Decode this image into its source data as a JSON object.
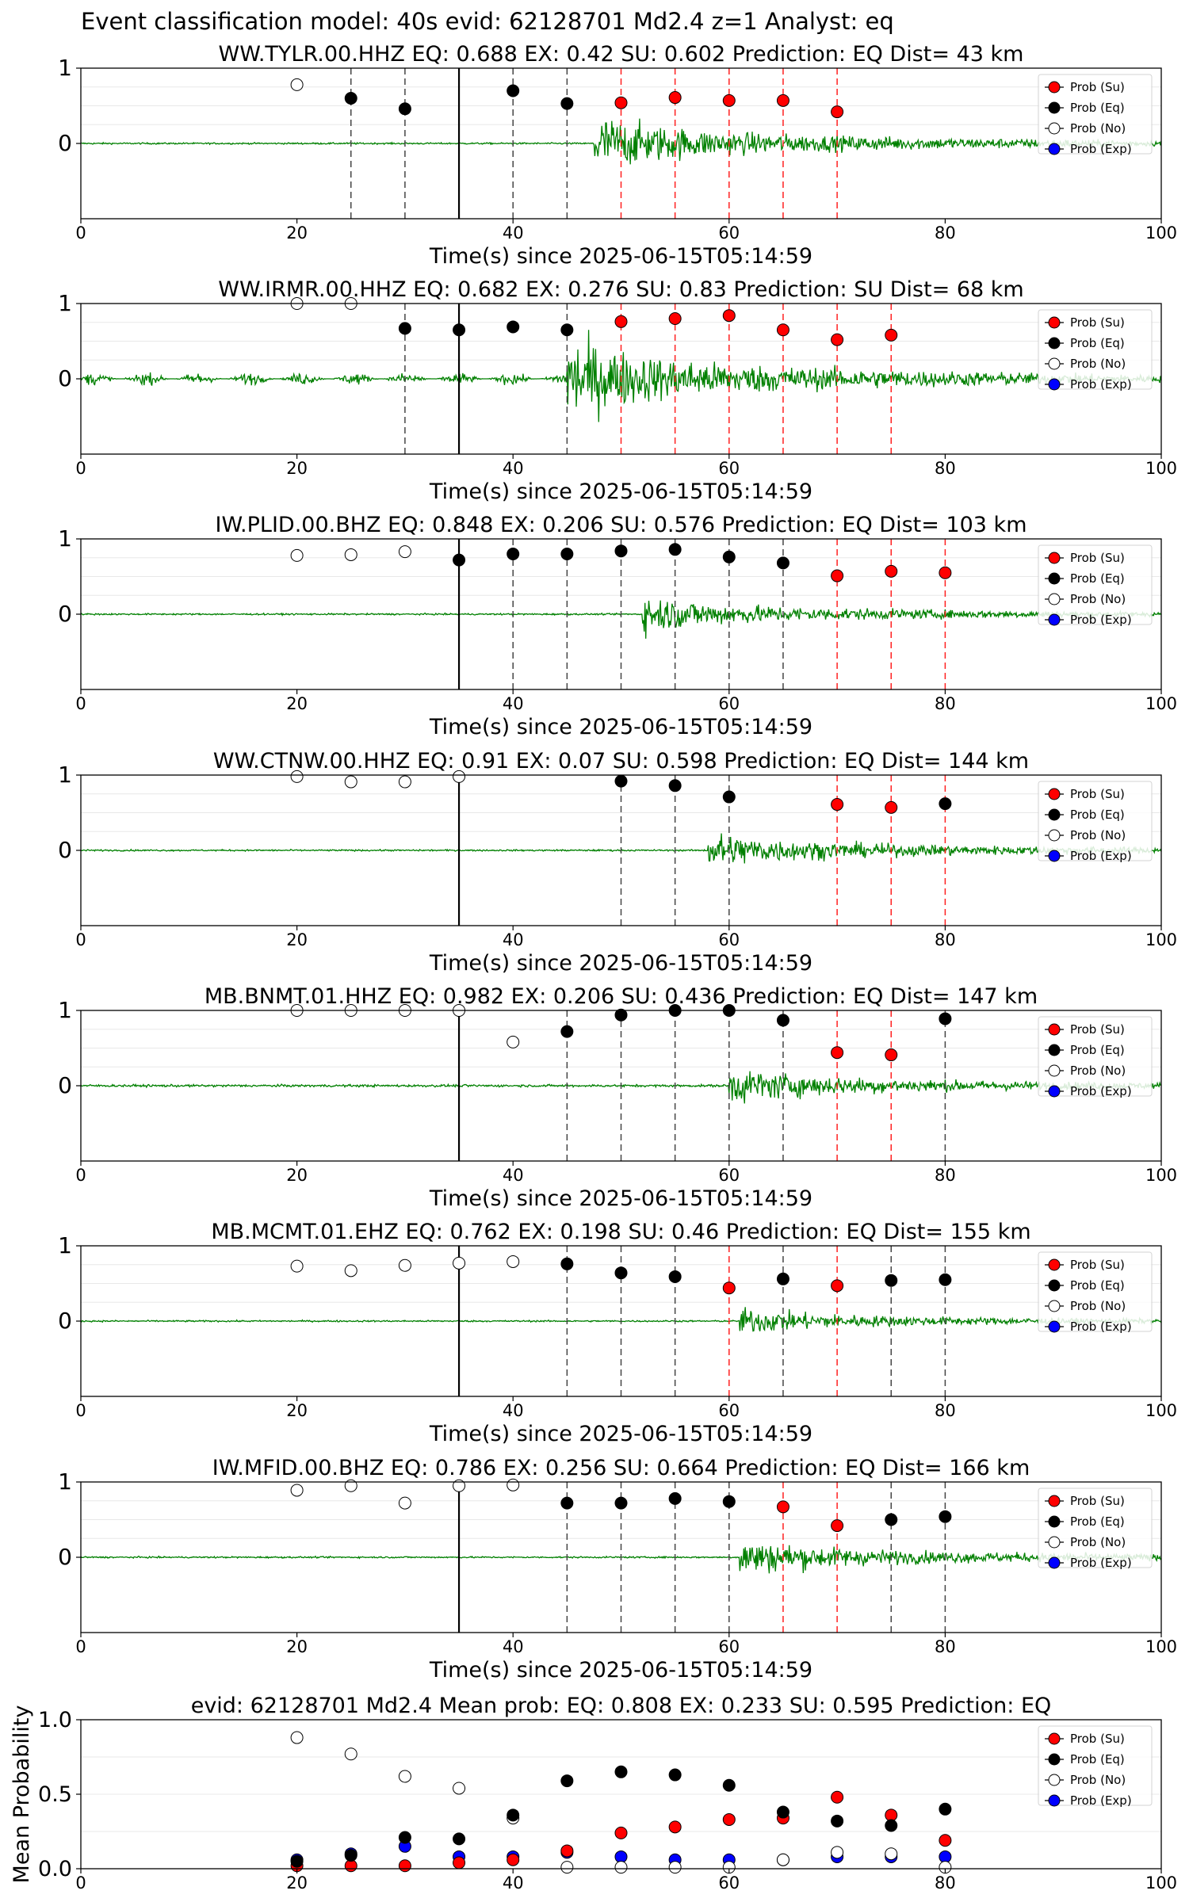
{
  "page_title": "Event classification model: 40s evid: 62128701 Md2.4 z=1 Analyst: eq",
  "legend_labels": [
    "Prob (Su)",
    "Prob (Eq)",
    "Prob (No)",
    "Prob (Exp)"
  ],
  "colors": {
    "su": "#ff0000",
    "eq": "#000000",
    "no": "#ffffff",
    "exp": "#0000ff",
    "waveform": "#008000"
  },
  "chart_data": [
    {
      "type": "scatter",
      "title": "WW.TYLR.00.HHZ   EQ: 0.688  EX: 0.42  SU: 0.602   Prediction: EQ    Dist= 43 km",
      "xlabel": "Time(s) since 2025-06-15T05:14:59",
      "ylabel": "",
      "xlim": [
        0,
        100
      ],
      "ylim": [
        -1,
        1
      ],
      "xticks": [
        0,
        20,
        40,
        60,
        80,
        100
      ],
      "yticks": [
        0,
        1
      ],
      "onset": 47.5,
      "noise_amp": 0.01,
      "signal_amp": 0.38,
      "black_line": 35,
      "gray_lines": [
        25,
        30,
        40,
        45
      ],
      "red_lines": [
        50,
        55,
        60,
        65,
        70
      ],
      "series": [
        {
          "name": "Prob (No)",
          "x": [
            20
          ],
          "y": [
            0.78
          ]
        },
        {
          "name": "Prob (Eq)",
          "x": [
            25,
            30,
            40,
            45
          ],
          "y": [
            0.6,
            0.46,
            0.7,
            0.53
          ]
        },
        {
          "name": "Prob (Su)",
          "x": [
            50,
            55,
            60,
            65,
            70
          ],
          "y": [
            0.54,
            0.61,
            0.57,
            0.57,
            0.42
          ]
        }
      ]
    },
    {
      "type": "scatter",
      "title": "WW.IRMR.00.HHZ   EQ: 0.682  EX: 0.276  SU: 0.83   Prediction: SU    Dist= 68 km",
      "xlabel": "Time(s) since 2025-06-15T05:14:59",
      "ylabel": "",
      "xlim": [
        0,
        100
      ],
      "ylim": [
        -1,
        1
      ],
      "xticks": [
        0,
        20,
        40,
        60,
        80,
        100
      ],
      "yticks": [
        0,
        1
      ],
      "onset": 45,
      "noise_amp": 0.05,
      "signal_amp": 0.55,
      "black_line": 35,
      "gray_lines": [
        30,
        45
      ],
      "red_lines": [
        50,
        55,
        60,
        65,
        70,
        75
      ],
      "series": [
        {
          "name": "Prob (No)",
          "x": [
            20,
            25
          ],
          "y": [
            1.0,
            1.0
          ]
        },
        {
          "name": "Prob (Eq)",
          "x": [
            30,
            35,
            40,
            45
          ],
          "y": [
            0.67,
            0.65,
            0.69,
            0.65
          ]
        },
        {
          "name": "Prob (Su)",
          "x": [
            50,
            55,
            60,
            65,
            70,
            75
          ],
          "y": [
            0.76,
            0.8,
            0.84,
            0.65,
            0.52,
            0.58
          ]
        }
      ]
    },
    {
      "type": "scatter",
      "title": "IW.PLID.00.BHZ   EQ: 0.848  EX: 0.206  SU: 0.576   Prediction: EQ    Dist= 103 km",
      "xlabel": "Time(s) since 2025-06-15T05:14:59",
      "ylabel": "",
      "xlim": [
        0,
        100
      ],
      "ylim": [
        -1,
        1
      ],
      "xticks": [
        0,
        20,
        40,
        60,
        80,
        100
      ],
      "yticks": [
        0,
        1
      ],
      "onset": 52,
      "noise_amp": 0.01,
      "signal_amp": 0.25,
      "black_line": 35,
      "gray_lines": [
        40,
        45,
        50,
        55,
        60,
        65
      ],
      "red_lines": [
        70,
        75,
        80
      ],
      "series": [
        {
          "name": "Prob (No)",
          "x": [
            20,
            25,
            30
          ],
          "y": [
            0.78,
            0.79,
            0.83
          ]
        },
        {
          "name": "Prob (Eq)",
          "x": [
            35,
            40,
            45,
            50,
            55,
            60,
            65
          ],
          "y": [
            0.72,
            0.8,
            0.8,
            0.84,
            0.86,
            0.76,
            0.68
          ]
        },
        {
          "name": "Prob (Su)",
          "x": [
            70,
            75,
            80
          ],
          "y": [
            0.51,
            0.57,
            0.55
          ]
        }
      ]
    },
    {
      "type": "scatter",
      "title": "WW.CTNW.00.HHZ   EQ: 0.91  EX: 0.07  SU: 0.598   Prediction: EQ    Dist= 144 km",
      "xlabel": "Time(s) since 2025-06-15T05:14:59",
      "ylabel": "",
      "xlim": [
        0,
        100
      ],
      "ylim": [
        -1,
        1
      ],
      "xticks": [
        0,
        20,
        40,
        60,
        80,
        100
      ],
      "yticks": [
        0,
        1
      ],
      "onset": 58,
      "noise_amp": 0.01,
      "signal_amp": 0.25,
      "black_line": 35,
      "gray_lines": [
        50,
        55,
        60
      ],
      "red_lines": [
        70,
        75,
        80
      ],
      "series": [
        {
          "name": "Prob (No)",
          "x": [
            20,
            25,
            30,
            35
          ],
          "y": [
            0.98,
            0.91,
            0.91,
            0.98
          ]
        },
        {
          "name": "Prob (Eq)",
          "x": [
            50,
            55,
            60,
            80
          ],
          "y": [
            0.92,
            0.86,
            0.71,
            0.62
          ]
        },
        {
          "name": "Prob (Su)",
          "x": [
            70,
            75
          ],
          "y": [
            0.61,
            0.57
          ]
        }
      ]
    },
    {
      "type": "scatter",
      "title": "MB.BNMT.01.HHZ   EQ: 0.982  EX: 0.206  SU: 0.436   Prediction: EQ    Dist= 147 km",
      "xlabel": "Time(s) since 2025-06-15T05:14:59",
      "ylabel": "",
      "xlim": [
        0,
        100
      ],
      "ylim": [
        -1,
        1
      ],
      "xticks": [
        0,
        20,
        40,
        60,
        80,
        100
      ],
      "yticks": [
        0,
        1
      ],
      "onset": 60,
      "noise_amp": 0.015,
      "signal_amp": 0.25,
      "black_line": 35,
      "gray_lines": [
        45,
        50,
        55,
        60,
        65,
        80
      ],
      "red_lines": [
        70,
        75
      ],
      "series": [
        {
          "name": "Prob (No)",
          "x": [
            20,
            25,
            30,
            35,
            40
          ],
          "y": [
            1.0,
            1.0,
            1.0,
            1.0,
            0.58
          ]
        },
        {
          "name": "Prob (Eq)",
          "x": [
            45,
            50,
            55,
            60,
            65,
            80
          ],
          "y": [
            0.72,
            0.94,
            1.0,
            1.0,
            0.87,
            0.89
          ]
        },
        {
          "name": "Prob (Su)",
          "x": [
            70,
            75
          ],
          "y": [
            0.44,
            0.41
          ]
        }
      ]
    },
    {
      "type": "scatter",
      "title": "MB.MCMT.01.EHZ   EQ: 0.762  EX: 0.198  SU: 0.46   Prediction: EQ    Dist= 155 km",
      "xlabel": "Time(s) since 2025-06-15T05:14:59",
      "ylabel": "",
      "xlim": [
        0,
        100
      ],
      "ylim": [
        -1,
        1
      ],
      "xticks": [
        0,
        20,
        40,
        60,
        80,
        100
      ],
      "yticks": [
        0,
        1
      ],
      "onset": 61,
      "noise_amp": 0.01,
      "signal_amp": 0.18,
      "black_line": 35,
      "gray_lines": [
        45,
        50,
        55,
        65,
        75,
        80
      ],
      "red_lines": [
        60,
        70
      ],
      "series": [
        {
          "name": "Prob (No)",
          "x": [
            20,
            25,
            30,
            35,
            40
          ],
          "y": [
            0.73,
            0.67,
            0.74,
            0.77,
            0.79
          ]
        },
        {
          "name": "Prob (Eq)",
          "x": [
            45,
            50,
            55,
            65,
            75,
            80
          ],
          "y": [
            0.76,
            0.64,
            0.59,
            0.56,
            0.54,
            0.55
          ]
        },
        {
          "name": "Prob (Su)",
          "x": [
            60,
            70
          ],
          "y": [
            0.44,
            0.47
          ]
        }
      ]
    },
    {
      "type": "scatter",
      "title": "IW.MFID.00.BHZ   EQ: 0.786  EX: 0.256  SU: 0.664   Prediction: EQ    Dist= 166 km",
      "xlabel": "Time(s) since 2025-06-15T05:14:59",
      "ylabel": "",
      "xlim": [
        0,
        100
      ],
      "ylim": [
        -1,
        1
      ],
      "xticks": [
        0,
        20,
        40,
        60,
        80,
        100
      ],
      "yticks": [
        0,
        1
      ],
      "onset": 61,
      "noise_amp": 0.01,
      "signal_amp": 0.25,
      "black_line": 35,
      "gray_lines": [
        45,
        50,
        55,
        60,
        75,
        80
      ],
      "red_lines": [
        65,
        70
      ],
      "series": [
        {
          "name": "Prob (No)",
          "x": [
            20,
            25,
            30,
            35,
            40
          ],
          "y": [
            0.89,
            0.95,
            0.72,
            0.95,
            0.96
          ]
        },
        {
          "name": "Prob (Eq)",
          "x": [
            45,
            50,
            55,
            60,
            75,
            80
          ],
          "y": [
            0.72,
            0.72,
            0.78,
            0.74,
            0.5,
            0.54
          ]
        },
        {
          "name": "Prob (Su)",
          "x": [
            65,
            70
          ],
          "y": [
            0.67,
            0.42
          ]
        }
      ]
    },
    {
      "type": "scatter",
      "title": "evid: 62128701  Md2.4   Mean prob:   EQ: 0.808  EX: 0.233  SU: 0.595   Prediction: EQ",
      "xlabel": "",
      "ylabel": "Mean Probability",
      "xlim": [
        0,
        100
      ],
      "ylim": [
        0,
        1
      ],
      "xticks": [
        0,
        20,
        40,
        60,
        80,
        100
      ],
      "yticks": [
        0.0,
        0.5,
        1.0
      ],
      "ytick_labels": [
        "0.0",
        "0.5",
        "1.0"
      ],
      "series": [
        {
          "name": "Prob (Exp)",
          "x": [
            20,
            25,
            30,
            35,
            40,
            45,
            50,
            55,
            60,
            65,
            70,
            75,
            80
          ],
          "y": [
            0.06,
            0.1,
            0.15,
            0.08,
            0.08,
            0.11,
            0.08,
            0.06,
            0.06,
            0.06,
            0.08,
            0.08,
            0.08
          ]
        },
        {
          "name": "Prob (No)",
          "x": [
            20,
            25,
            30,
            35,
            40,
            45,
            50,
            55,
            60,
            65,
            70,
            75,
            80
          ],
          "y": [
            0.88,
            0.77,
            0.62,
            0.54,
            0.34,
            0.01,
            0.01,
            0.01,
            0.01,
            0.06,
            0.11,
            0.1,
            0.01
          ]
        },
        {
          "name": "Prob (Su)",
          "x": [
            20,
            25,
            30,
            35,
            40,
            45,
            50,
            55,
            60,
            65,
            70,
            75,
            80
          ],
          "y": [
            0.02,
            0.02,
            0.02,
            0.04,
            0.06,
            0.12,
            0.24,
            0.28,
            0.33,
            0.34,
            0.48,
            0.36,
            0.19
          ]
        },
        {
          "name": "Prob (Eq)",
          "x": [
            20,
            25,
            30,
            35,
            40,
            45,
            50,
            55,
            60,
            65,
            70,
            75,
            80
          ],
          "y": [
            0.05,
            0.09,
            0.21,
            0.2,
            0.36,
            0.59,
            0.65,
            0.63,
            0.56,
            0.38,
            0.32,
            0.29,
            0.4
          ]
        }
      ]
    }
  ]
}
